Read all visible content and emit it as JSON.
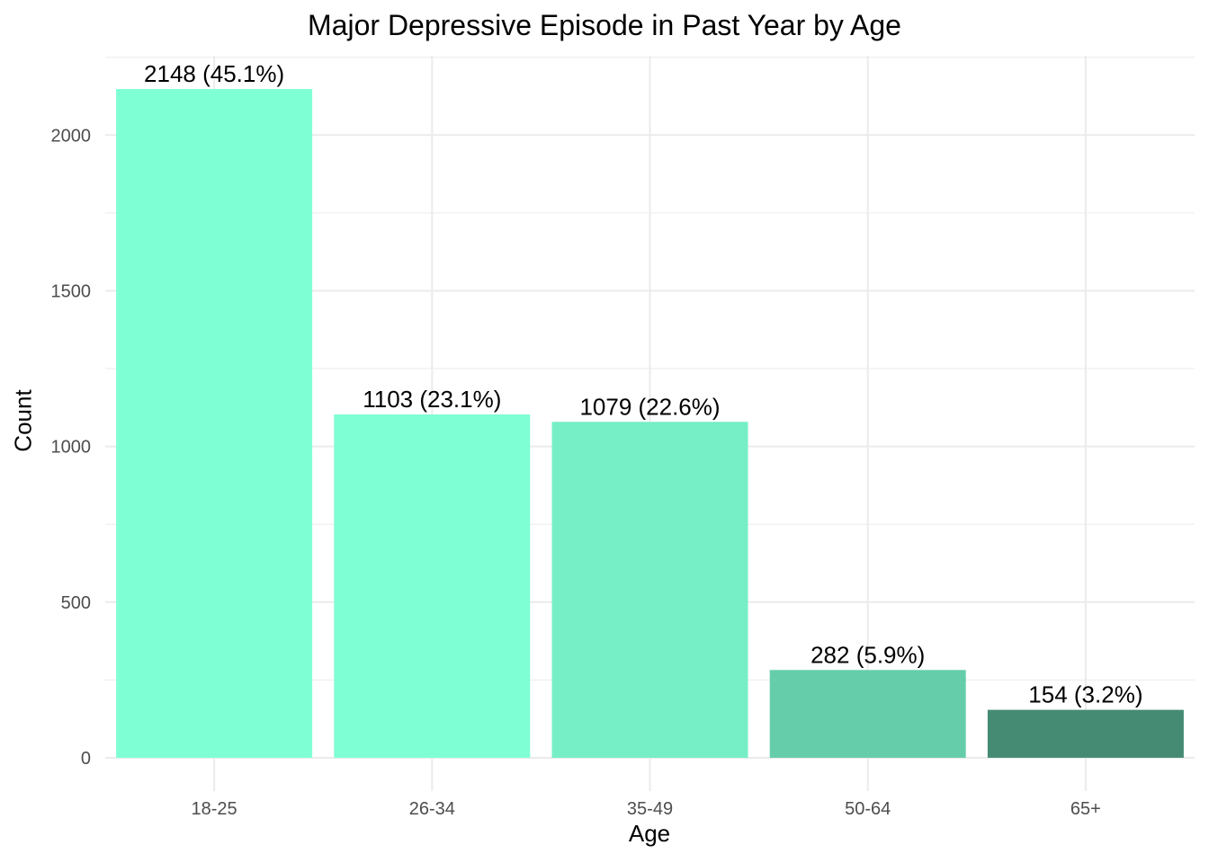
{
  "chart_data": {
    "type": "bar",
    "title": "Major Depressive Episode in Past Year by Age",
    "xlabel": "Age",
    "ylabel": "Count",
    "categories": [
      "18-25",
      "26-34",
      "35-49",
      "50-64",
      "65+"
    ],
    "values": [
      2148,
      1103,
      1079,
      282,
      154
    ],
    "data_labels": [
      "2148 (45.1%)",
      "1103 (23.1%)",
      "1079 (22.6%)",
      "282 (5.9%)",
      "154 (3.2%)"
    ],
    "bar_colors": [
      "#7fffd4",
      "#7fffd4",
      "#76eec6",
      "#66cdaa",
      "#458b74"
    ],
    "yticks": [
      0,
      500,
      1000,
      1500,
      2000
    ],
    "ylim": [
      -107,
      2255
    ],
    "grid": true,
    "legend": "none"
  }
}
